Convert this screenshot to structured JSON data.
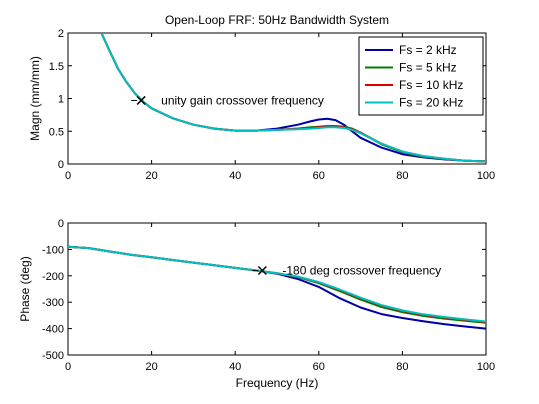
{
  "chart_data": [
    {
      "type": "line",
      "title": "Open-Loop FRF: 50Hz Bandwidth System",
      "xlabel": "",
      "ylabel": "Magn (mm/mm)",
      "xlim": [
        0,
        100
      ],
      "ylim": [
        0,
        2
      ],
      "xticks": [
        0,
        20,
        40,
        60,
        80,
        100
      ],
      "yticks": [
        0,
        0.5,
        1,
        1.5,
        2
      ],
      "ytick_labels": [
        "0",
        "0.5",
        "1",
        "1.5",
        "2"
      ],
      "legend_position": "top-right",
      "grid": false,
      "series": [
        {
          "name": "Fs = 2 kHz",
          "color": "#0000a8",
          "x": [
            8,
            10,
            12,
            14,
            16,
            18,
            20,
            25,
            30,
            35,
            40,
            45,
            50,
            55,
            58,
            60,
            62,
            64,
            66,
            68,
            70,
            75,
            80,
            85,
            90,
            95,
            100
          ],
          "y": [
            2.0,
            1.72,
            1.45,
            1.25,
            1.08,
            0.95,
            0.85,
            0.7,
            0.6,
            0.54,
            0.51,
            0.51,
            0.54,
            0.6,
            0.65,
            0.68,
            0.69,
            0.67,
            0.6,
            0.5,
            0.4,
            0.25,
            0.15,
            0.1,
            0.07,
            0.05,
            0.04
          ]
        },
        {
          "name": "Fs = 5 kHz",
          "color": "#007f00",
          "x": [
            8,
            10,
            12,
            14,
            16,
            18,
            20,
            25,
            30,
            35,
            40,
            45,
            50,
            55,
            58,
            60,
            62,
            64,
            66,
            68,
            70,
            75,
            80,
            85,
            90,
            95,
            100
          ],
          "y": [
            2.0,
            1.72,
            1.45,
            1.25,
            1.08,
            0.95,
            0.85,
            0.7,
            0.6,
            0.54,
            0.51,
            0.51,
            0.52,
            0.54,
            0.56,
            0.57,
            0.58,
            0.58,
            0.57,
            0.54,
            0.48,
            0.3,
            0.18,
            0.11,
            0.08,
            0.05,
            0.04
          ]
        },
        {
          "name": "Fs = 10 kHz",
          "color": "#e00000",
          "x": [
            8,
            10,
            12,
            14,
            16,
            18,
            20,
            25,
            30,
            35,
            40,
            45,
            50,
            55,
            58,
            60,
            62,
            64,
            66,
            68,
            70,
            75,
            80,
            85,
            90,
            95,
            100
          ],
          "y": [
            2.0,
            1.72,
            1.45,
            1.25,
            1.08,
            0.95,
            0.85,
            0.7,
            0.6,
            0.54,
            0.51,
            0.51,
            0.52,
            0.54,
            0.55,
            0.56,
            0.57,
            0.57,
            0.56,
            0.53,
            0.48,
            0.31,
            0.19,
            0.12,
            0.08,
            0.05,
            0.04
          ]
        },
        {
          "name": "Fs = 20 kHz",
          "color": "#00bfbf",
          "x": [
            8,
            10,
            12,
            14,
            16,
            18,
            20,
            25,
            30,
            35,
            40,
            45,
            50,
            55,
            58,
            60,
            62,
            64,
            66,
            68,
            70,
            75,
            80,
            85,
            90,
            95,
            100
          ],
          "y": [
            2.0,
            1.72,
            1.45,
            1.25,
            1.08,
            0.95,
            0.85,
            0.7,
            0.6,
            0.54,
            0.51,
            0.51,
            0.52,
            0.53,
            0.54,
            0.55,
            0.56,
            0.56,
            0.55,
            0.52,
            0.47,
            0.31,
            0.19,
            0.12,
            0.08,
            0.05,
            0.04
          ]
        }
      ],
      "annotations": [
        {
          "text": "unity gain crossover frequency",
          "x": 17.5,
          "y": 0.97,
          "marker": "x"
        }
      ]
    },
    {
      "type": "line",
      "title": "",
      "xlabel": "Frequency (Hz)",
      "ylabel": "Phase (deg)",
      "xlim": [
        0,
        100
      ],
      "ylim": [
        -500,
        0
      ],
      "xticks": [
        0,
        20,
        40,
        60,
        80,
        100
      ],
      "yticks": [
        0,
        -100,
        -200,
        -300,
        -400,
        -500
      ],
      "ytick_labels": [
        "0",
        "-100",
        "-200",
        "-300",
        "-400",
        "-500"
      ],
      "grid": false,
      "series": [
        {
          "name": "Fs = 2 kHz",
          "color": "#0000a8",
          "x": [
            0,
            5,
            10,
            15,
            20,
            25,
            30,
            35,
            40,
            45,
            50,
            55,
            60,
            65,
            70,
            75,
            80,
            85,
            90,
            95,
            100
          ],
          "y": [
            -90,
            -95,
            -108,
            -120,
            -130,
            -140,
            -150,
            -160,
            -170,
            -180,
            -192,
            -212,
            -242,
            -285,
            -320,
            -345,
            -360,
            -372,
            -383,
            -392,
            -400
          ]
        },
        {
          "name": "Fs = 5 kHz",
          "color": "#007f00",
          "x": [
            0,
            5,
            10,
            15,
            20,
            25,
            30,
            35,
            40,
            45,
            50,
            55,
            60,
            65,
            70,
            75,
            80,
            85,
            90,
            95,
            100
          ],
          "y": [
            -90,
            -95,
            -108,
            -120,
            -130,
            -140,
            -150,
            -160,
            -170,
            -180,
            -190,
            -205,
            -228,
            -258,
            -290,
            -318,
            -338,
            -352,
            -362,
            -370,
            -378
          ]
        },
        {
          "name": "Fs = 10 kHz",
          "color": "#e00000",
          "x": [
            0,
            5,
            10,
            15,
            20,
            25,
            30,
            35,
            40,
            45,
            50,
            55,
            60,
            65,
            70,
            75,
            80,
            85,
            90,
            95,
            100
          ],
          "y": [
            -90,
            -95,
            -108,
            -120,
            -130,
            -140,
            -150,
            -160,
            -170,
            -180,
            -190,
            -204,
            -225,
            -254,
            -285,
            -313,
            -333,
            -348,
            -358,
            -367,
            -375
          ]
        },
        {
          "name": "Fs = 20 kHz",
          "color": "#00bfbf",
          "x": [
            0,
            5,
            10,
            15,
            20,
            25,
            30,
            35,
            40,
            45,
            50,
            55,
            60,
            65,
            70,
            75,
            80,
            85,
            90,
            95,
            100
          ],
          "y": [
            -90,
            -95,
            -108,
            -120,
            -130,
            -140,
            -150,
            -160,
            -170,
            -180,
            -190,
            -203,
            -224,
            -252,
            -283,
            -311,
            -331,
            -346,
            -356,
            -365,
            -373
          ]
        }
      ],
      "annotations": [
        {
          "text": "-180 deg crossover frequency",
          "x": 46.5,
          "y": -180,
          "marker": "x"
        }
      ]
    }
  ]
}
